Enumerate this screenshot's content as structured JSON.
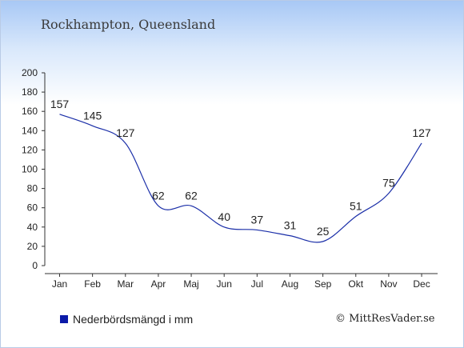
{
  "colors": {
    "series": "#1a2ea8",
    "legend": "#0b1aa8",
    "axis": "#333333"
  },
  "chart_data": {
    "type": "line",
    "title": "Rockhampton, Queensland",
    "categories": [
      "Jan",
      "Feb",
      "Mar",
      "Apr",
      "Maj",
      "Jun",
      "Jul",
      "Aug",
      "Sep",
      "Okt",
      "Nov",
      "Dec"
    ],
    "series": [
      {
        "name": "Nederbördsmängd i mm",
        "values": [
          157,
          145,
          127,
          62,
          62,
          40,
          37,
          31,
          25,
          51,
          75,
          127
        ]
      }
    ],
    "ylim": [
      0,
      200
    ],
    "yticks": [
      0,
      20,
      40,
      60,
      80,
      100,
      120,
      140,
      160,
      180,
      200
    ],
    "grid": false,
    "legend_position": "bottom-left"
  },
  "credit": "© MittResVader.se"
}
